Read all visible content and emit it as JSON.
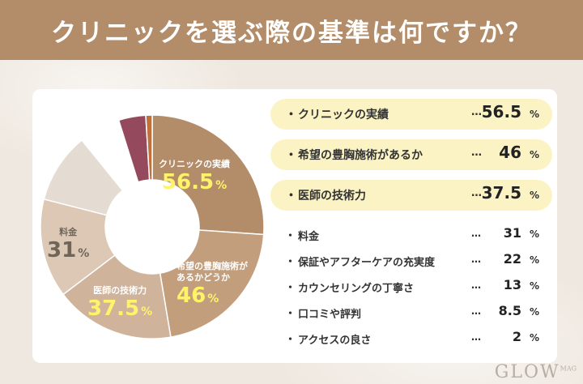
{
  "header": {
    "title": "クリニックを選ぶ際の基準は何ですか？"
  },
  "colors": {
    "header_bg": "#b38c69",
    "highlight_bg": "#fbf3c4",
    "value_yellow": "#fff36a"
  },
  "chart_data": {
    "type": "pie",
    "title": "クリニックを選ぶ際の基準は何ですか？",
    "unit": "%",
    "categories": [
      "クリニックの実績",
      "希望の豊胸施術があるか",
      "医師の技術力",
      "料金",
      "保証やアフターケアの充実度",
      "カウンセリングの丁寧さ",
      "口コミや評判",
      "アクセスの良さ"
    ],
    "values": [
      56.5,
      46,
      37.5,
      31,
      22,
      13,
      8.5,
      2
    ],
    "colors": [
      "#b38c69",
      "#c29e7d",
      "#cfb39b",
      "#ddc8b6",
      "#e4dcd3",
      "#ffffff",
      "#944a5c",
      "#c0703a"
    ]
  },
  "donut_labels": [
    {
      "name": "クリニックの実績",
      "value": "56.5",
      "unit": "%"
    },
    {
      "name": "希望の豊胸施術が\nあるかどうか",
      "value": "46",
      "unit": "%"
    },
    {
      "name": "医師の技術力",
      "value": "37.5",
      "unit": "%"
    },
    {
      "name": "料金",
      "value": "31",
      "unit": "%"
    }
  ],
  "ranking": [
    {
      "bullet": "・",
      "label": "クリニックの実績",
      "dots": "…",
      "value": "56.5",
      "unit": "%"
    },
    {
      "bullet": "・",
      "label": "希望の豊胸施術があるか",
      "dots": "…",
      "value": "46",
      "unit": "%"
    },
    {
      "bullet": "・",
      "label": "医師の技術力",
      "dots": "…",
      "value": "37.5",
      "unit": "%"
    },
    {
      "bullet": "・",
      "label": "料金",
      "dots": "…",
      "value": "31",
      "unit": "%"
    },
    {
      "bullet": "・",
      "label": "保証やアフターケアの充実度",
      "dots": "…",
      "value": "22",
      "unit": "%"
    },
    {
      "bullet": "・",
      "label": "カウンセリングの丁寧さ",
      "dots": "…",
      "value": "13",
      "unit": "%"
    },
    {
      "bullet": "・",
      "label": "口コミや評判",
      "dots": "…",
      "value": "8.5",
      "unit": "%"
    },
    {
      "bullet": "・",
      "label": "アクセスの良さ",
      "dots": "…",
      "value": "2",
      "unit": "%"
    }
  ],
  "logo": {
    "main": "GLOW",
    "small": "MAG"
  }
}
